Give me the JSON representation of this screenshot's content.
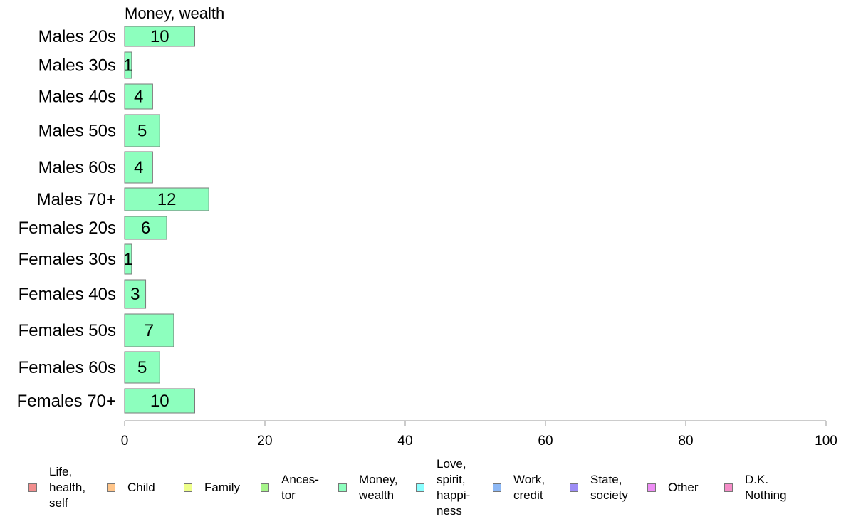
{
  "chart_data": {
    "type": "bar",
    "orientation": "horizontal",
    "title": "Money, wealth",
    "categories": [
      "Males 20s",
      "Males 30s",
      "Males 40s",
      "Males 50s",
      "Males 60s",
      "Males 70+",
      "Females 20s",
      "Females 30s",
      "Females 40s",
      "Females 50s",
      "Females 60s",
      "Females 70+"
    ],
    "values": [
      10,
      1,
      4,
      5,
      4,
      12,
      6,
      1,
      3,
      7,
      5,
      10
    ],
    "xlim": [
      0,
      100
    ],
    "xticks": [
      0,
      20,
      40,
      60,
      80,
      100
    ],
    "bar_color": "#8DFFBE",
    "grid": false,
    "legend_position": "bottom"
  },
  "legend": [
    {
      "label": "Life,\nhealth,\nself",
      "color": "#F28E8E"
    },
    {
      "label": "Child",
      "color": "#FFC58A"
    },
    {
      "label": "Family",
      "color": "#EEFF8A"
    },
    {
      "label": "Ances-\ntor",
      "color": "#A6F58A"
    },
    {
      "label": "Money,\nwealth",
      "color": "#8DFFBE"
    },
    {
      "label": "Love,\nspirit,\nhappi-\nness",
      "color": "#8AFFFF"
    },
    {
      "label": "Work,\ncredit",
      "color": "#8DB8F5"
    },
    {
      "label": "State,\nsociety",
      "color": "#9D8DF5"
    },
    {
      "label": "Other",
      "color": "#EE8DF5"
    },
    {
      "label": "D.K.\nNothing",
      "color": "#F58DC8"
    }
  ]
}
